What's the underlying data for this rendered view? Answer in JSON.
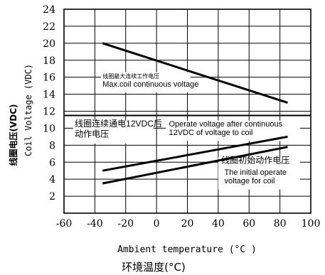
{
  "chart_data": {
    "type": "line",
    "ylabel_en": "Coil Voltage (VDC)",
    "ylabel_cn": "线圈电压(VDC)",
    "xlabel_en": "Ambient temperature (°C )",
    "xlabel_cn": "环境温度(°C)",
    "xlim": [
      -60,
      100
    ],
    "ylim": [
      0,
      24
    ],
    "x_ticks": [
      "-60",
      "-40",
      "-20",
      "0",
      "20",
      "40",
      "60",
      "80",
      "100"
    ],
    "y_ticks": [
      "2",
      "4",
      "6",
      "8",
      "10",
      "12",
      "14",
      "16",
      "18",
      "20",
      "22",
      "24"
    ],
    "y_tick_values": [
      2,
      4,
      6,
      8,
      10,
      12,
      14,
      16,
      18,
      20,
      22,
      24
    ],
    "grid": true,
    "series": [
      {
        "x": [
          -35,
          85
        ],
        "y": [
          20.0,
          13.0
        ],
        "width": 3
      },
      {
        "x": [
          -35,
          85
        ],
        "y": [
          5.0,
          9.0
        ],
        "width": 3
      },
      {
        "x": [
          -35,
          85
        ],
        "y": [
          3.5,
          7.8
        ],
        "width": 3
      }
    ],
    "annotations": [
      {
        "text": "线圈最大连续工作电压",
        "x": -35,
        "y": 15.9,
        "size": 8
      },
      {
        "text": "Max.coil continuous voltage",
        "x": -35,
        "y": 14.9,
        "size": 11
      },
      {
        "text": "线圈连续通电12VDC后",
        "x": -53,
        "y": 10.2,
        "size": 12
      },
      {
        "text": "动作电压",
        "x": -53,
        "y": 9.0,
        "size": 12
      },
      {
        "text": "Operate voltage after continuous",
        "x": 8,
        "y": 10.2,
        "size": 11
      },
      {
        "text": "12VDC of voltage to coil",
        "x": 8,
        "y": 9.2,
        "size": 11
      },
      {
        "text": "线圈初始动作电压",
        "x": 42,
        "y": 5.9,
        "size": 12
      },
      {
        "text": "The initial operate",
        "x": 44,
        "y": 4.5,
        "size": 11
      },
      {
        "text": "voltage for coil",
        "x": 44,
        "y": 3.5,
        "size": 11
      }
    ]
  }
}
